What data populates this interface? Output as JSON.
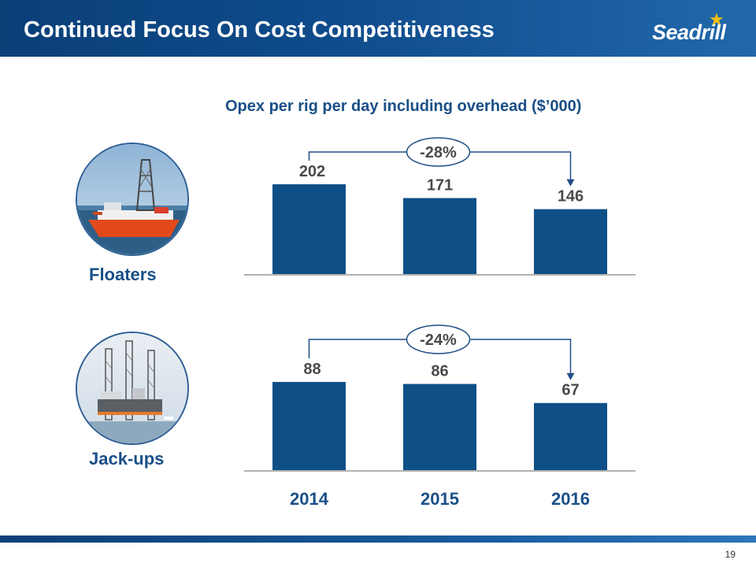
{
  "slide": {
    "title": "Continued Focus On Cost Competitiveness",
    "logo_text": "Seadrill",
    "subtitle": "Opex per rig per day including overhead ($’000)",
    "page_number": "19"
  },
  "segments": {
    "floaters_label": "Floaters",
    "jackups_label": "Jack-ups"
  },
  "colors": {
    "bar": "#0f4f87",
    "title": "#1a4f87",
    "header_dark": "#0a3f78",
    "logo_star": "#f2c012"
  },
  "chart_data": [
    {
      "type": "bar",
      "name": "Floaters",
      "categories": [
        "2014",
        "2015",
        "2016"
      ],
      "values": [
        202,
        171,
        146
      ],
      "value_labels": [
        "202",
        "171",
        "146"
      ],
      "change_label": "-28%",
      "ylim": [
        0,
        202
      ]
    },
    {
      "type": "bar",
      "name": "Jack-ups",
      "categories": [
        "2014",
        "2015",
        "2016"
      ],
      "values": [
        88,
        86,
        67
      ],
      "value_labels": [
        "88",
        "86",
        "67"
      ],
      "change_label": "-24%",
      "ylim": [
        0,
        88
      ]
    }
  ]
}
